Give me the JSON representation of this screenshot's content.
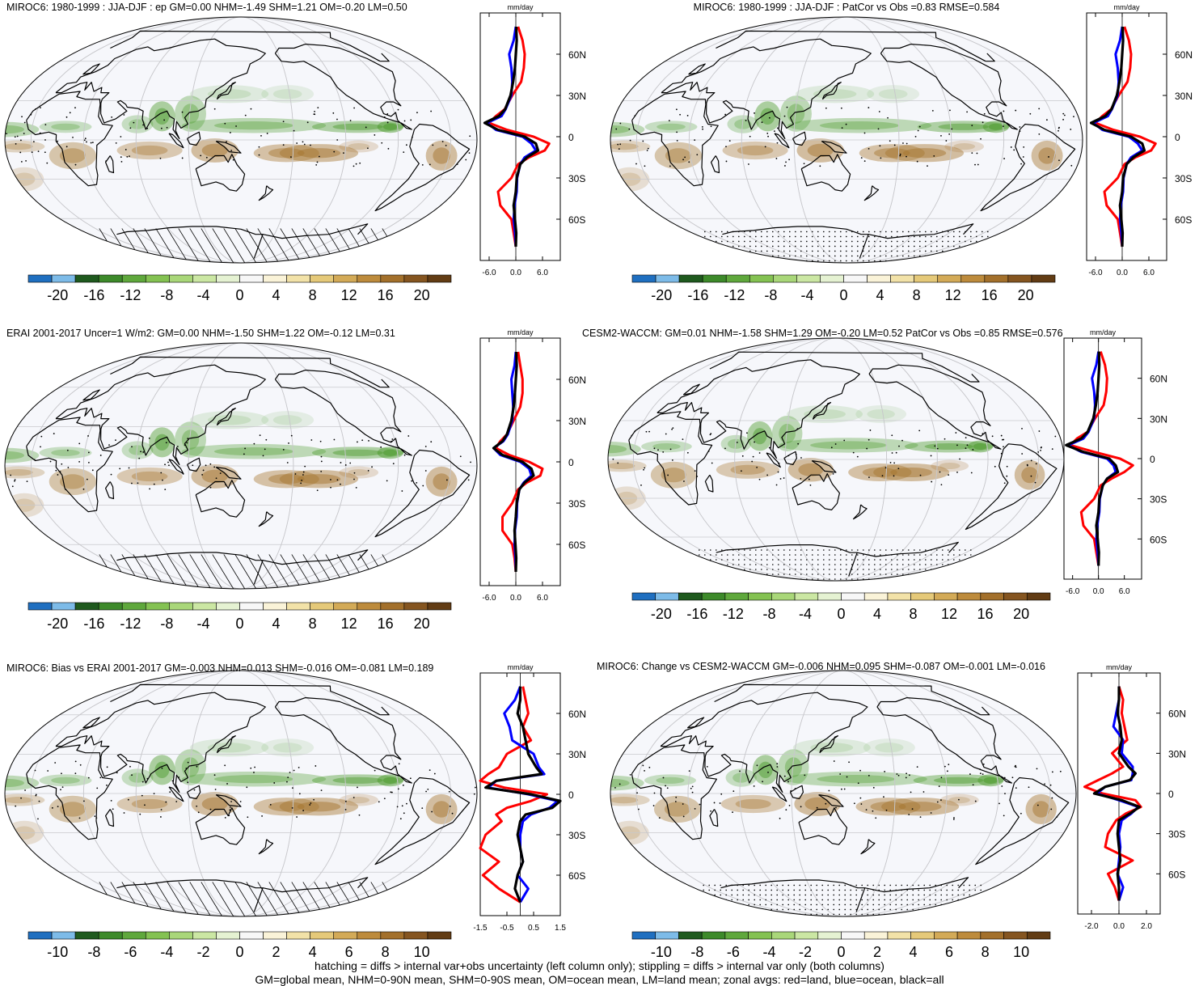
{
  "colors": {
    "land_line": "#ff0000",
    "ocean_line": "#0000ff",
    "all_line": "#000000",
    "wet": "#4a9a2a",
    "dry": "#a5742c",
    "palette": [
      "#1f6fc0",
      "#7dbbe8",
      "#1f5a1e",
      "#3d8a2a",
      "#5fa83c",
      "#84c252",
      "#a9d779",
      "#cbe7a3",
      "#e5f2d2",
      "#f7f7f7",
      "#faf3d8",
      "#f2e2a8",
      "#e5c979",
      "#d3aa57",
      "#bd8b3c",
      "#a3702b",
      "#855520",
      "#623c14"
    ]
  },
  "footer": {
    "line1": "hatching = diffs > internal var+obs uncertainty (left column only); stippling = diffs > internal var only (both columns)",
    "line2": "GM=global mean, NHM=0-90N mean, SHM=0-90S mean, OM=ocean mean, LM=land mean; zonal avgs: red=land, blue=ocean, black=all"
  },
  "chart_data": [
    {
      "type": "heatmap",
      "title": "MIROC6: 1980-1999 : JJA-DJF : ep GM=0.00 NHM=-1.49 SHM=1.21 OM=-0.20 LM=0.50",
      "colorbar_labels": [
        "-20",
        "-16",
        "-12",
        "-8",
        "-4",
        "0",
        "4",
        "8",
        "12",
        "16",
        "20"
      ],
      "profile": {
        "unit": "mm/day",
        "xticks": [
          "-6.0",
          "0.0",
          "6.0"
        ],
        "xlim": [
          -8,
          10
        ],
        "yticks": [
          "60N",
          "30N",
          "0",
          "30S",
          "60S"
        ],
        "lat": [
          80,
          70,
          60,
          50,
          40,
          30,
          20,
          15,
          10,
          5,
          0,
          -5,
          -10,
          -15,
          -20,
          -30,
          -40,
          -50,
          -60,
          -70,
          -80
        ],
        "all": [
          0.1,
          0.2,
          0.0,
          -0.2,
          -0.6,
          -1.2,
          -2.4,
          -3.8,
          -7.0,
          -4.0,
          2.0,
          4.5,
          5.0,
          2.5,
          1.0,
          0.2,
          0.0,
          -0.5,
          -0.2,
          0.1,
          0.0
        ],
        "land": [
          0.5,
          1.5,
          2.0,
          1.8,
          1.2,
          -0.8,
          -2.5,
          -4.5,
          -6.0,
          -2.0,
          4.0,
          7.5,
          6.5,
          3.0,
          0.5,
          -1.0,
          -4.0,
          -3.5,
          -1.0,
          -0.5,
          0.0
        ],
        "ocean": [
          0.0,
          -0.5,
          -1.5,
          -1.0,
          -0.8,
          -1.0,
          -2.3,
          -3.2,
          -6.5,
          -4.5,
          1.5,
          3.5,
          4.5,
          2.0,
          1.0,
          0.3,
          0.2,
          -0.3,
          -0.5,
          -0.2,
          0.0
        ]
      }
    },
    {
      "type": "heatmap",
      "title": "MIROC6: 1980-1999 : JJA-DJF : PatCor vs Obs =0.83 RMSE=0.584",
      "colorbar_labels": [
        "-20",
        "-16",
        "-12",
        "-8",
        "-4",
        "0",
        "4",
        "8",
        "12",
        "16",
        "20"
      ],
      "profile": {
        "unit": "mm/day",
        "xticks": [
          "-6.0",
          "0.0",
          "6.0"
        ],
        "xlim": [
          -8,
          10
        ],
        "yticks": [
          "60N",
          "30N",
          "0",
          "30S",
          "60S"
        ],
        "lat": [
          80,
          70,
          60,
          50,
          40,
          30,
          20,
          15,
          10,
          5,
          0,
          -5,
          -10,
          -15,
          -20,
          -30,
          -40,
          -50,
          -60,
          -70,
          -80
        ],
        "all": [
          0.1,
          0.2,
          0.0,
          -0.2,
          -0.6,
          -1.2,
          -2.4,
          -3.8,
          -7.0,
          -4.0,
          2.0,
          4.5,
          5.0,
          2.5,
          1.0,
          0.2,
          0.0,
          -0.5,
          -0.2,
          0.1,
          0.0
        ],
        "land": [
          0.5,
          1.5,
          2.0,
          1.8,
          1.2,
          -0.8,
          -2.5,
          -4.5,
          -6.0,
          -2.0,
          4.0,
          7.5,
          6.5,
          3.0,
          0.5,
          -1.0,
          -4.0,
          -3.5,
          -1.0,
          -0.5,
          0.0
        ],
        "ocean": [
          0.0,
          -0.5,
          -1.5,
          -1.0,
          -0.8,
          -1.0,
          -2.3,
          -3.2,
          -6.5,
          -4.5,
          1.5,
          3.5,
          4.5,
          2.0,
          1.0,
          0.3,
          0.2,
          -0.3,
          -0.5,
          -0.2,
          0.0
        ]
      }
    },
    {
      "type": "heatmap",
      "title": "ERAI 2001-2017 Uncer=1 W/m2: GM=0.00 NHM=-1.50 SHM=1.22 OM=-0.12 LM=0.31",
      "colorbar_labels": [
        "-20",
        "-16",
        "-12",
        "-8",
        "-4",
        "0",
        "4",
        "8",
        "12",
        "16",
        "20"
      ],
      "profile": {
        "unit": "mm/day",
        "xticks": [
          "-6.0",
          "0.0",
          "6.0"
        ],
        "xlim": [
          -8,
          10
        ],
        "yticks": [
          "60N",
          "30N",
          "0",
          "30S",
          "60S"
        ],
        "lat": [
          80,
          70,
          60,
          50,
          40,
          30,
          20,
          15,
          10,
          5,
          0,
          -5,
          -10,
          -15,
          -20,
          -30,
          -40,
          -50,
          -60,
          -70,
          -80
        ],
        "all": [
          0.1,
          0.2,
          0.0,
          -0.2,
          -0.5,
          -1.0,
          -2.0,
          -3.0,
          -5.0,
          -3.0,
          1.5,
          3.5,
          4.0,
          2.0,
          0.8,
          0.2,
          0.0,
          -0.3,
          -0.1,
          0.1,
          0.0
        ],
        "land": [
          0.5,
          1.0,
          1.5,
          1.5,
          1.0,
          -0.5,
          -2.0,
          -3.5,
          -4.5,
          -1.5,
          3.0,
          6.0,
          5.5,
          2.5,
          0.5,
          -0.8,
          -3.0,
          -3.0,
          -0.8,
          -0.3,
          0.0
        ],
        "ocean": [
          0.0,
          -0.3,
          -1.0,
          -0.8,
          -0.6,
          -0.8,
          -1.8,
          -2.8,
          -5.0,
          -3.5,
          1.0,
          3.0,
          3.5,
          1.8,
          0.8,
          0.3,
          0.2,
          -0.2,
          -0.3,
          -0.1,
          0.0
        ]
      }
    },
    {
      "type": "heatmap",
      "title": "CESM2-WACCM: GM=0.01 NHM=-1.58 SHM=1.29 OM=-0.20 LM=0.52 PatCor vs Obs =0.85 RMSE=0.576",
      "colorbar_labels": [
        "-20",
        "-16",
        "-12",
        "-8",
        "-4",
        "0",
        "4",
        "8",
        "12",
        "16",
        "20"
      ],
      "profile": {
        "unit": "mm/day",
        "xticks": [
          "-6.0",
          "0.0",
          "6.0"
        ],
        "xlim": [
          -8,
          10
        ],
        "yticks": [
          "60N",
          "30N",
          "0",
          "30S",
          "60S"
        ],
        "lat": [
          80,
          70,
          60,
          50,
          40,
          30,
          20,
          15,
          10,
          5,
          0,
          -5,
          -10,
          -15,
          -20,
          -30,
          -40,
          -50,
          -60,
          -70,
          -80
        ],
        "all": [
          0.1,
          0.2,
          0.0,
          -0.2,
          -0.6,
          -1.2,
          -2.5,
          -4.0,
          -7.5,
          -3.5,
          2.5,
          4.0,
          4.5,
          2.0,
          1.0,
          0.2,
          0.0,
          -0.5,
          -0.2,
          0.1,
          0.0
        ],
        "land": [
          0.5,
          1.5,
          2.0,
          1.8,
          1.2,
          -0.8,
          -2.5,
          -5.0,
          -6.5,
          -1.0,
          5.0,
          8.0,
          6.0,
          3.0,
          0.5,
          -1.0,
          -4.0,
          -3.5,
          -1.0,
          -0.5,
          0.0
        ],
        "ocean": [
          0.0,
          -0.5,
          -1.5,
          -1.0,
          -0.8,
          -1.0,
          -2.3,
          -3.5,
          -7.0,
          -4.0,
          2.0,
          3.5,
          4.0,
          2.0,
          1.0,
          0.3,
          0.2,
          -0.3,
          -0.5,
          -0.2,
          0.0
        ]
      }
    },
    {
      "type": "heatmap",
      "title": "MIROC6: Bias vs ERAI 2001-2017 GM=-0.003 NHM=0.013 SHM=-0.016 OM=-0.081 LM=0.189",
      "colorbar_labels": [
        "-10",
        "-8",
        "-6",
        "-4",
        "-2",
        "0",
        "2",
        "4",
        "6",
        "8",
        "10"
      ],
      "profile": {
        "unit": "mm/day",
        "xticks": [
          "-1.5",
          "-0.5",
          "0.5",
          "1.5"
        ],
        "xlim": [
          -1.5,
          1.5
        ],
        "yticks": [
          "60N",
          "30N",
          "0",
          "30S",
          "60S"
        ],
        "lat": [
          80,
          70,
          60,
          50,
          40,
          30,
          20,
          15,
          10,
          5,
          0,
          -5,
          -10,
          -15,
          -20,
          -30,
          -40,
          -50,
          -60,
          -70,
          -80
        ],
        "all": [
          0.0,
          0.0,
          -0.1,
          0.1,
          0.2,
          0.3,
          0.6,
          0.8,
          -0.9,
          -1.3,
          0.4,
          1.5,
          1.2,
          0.2,
          0.0,
          -0.1,
          0.0,
          0.1,
          -0.1,
          -0.2,
          0.0
        ],
        "land": [
          0.1,
          0.2,
          0.3,
          0.1,
          0.4,
          -0.5,
          -0.8,
          -1.2,
          -1.5,
          -0.6,
          1.0,
          0.4,
          -0.5,
          -0.9,
          -0.7,
          -1.3,
          -1.5,
          -0.8,
          -1.4,
          -0.8,
          0.0
        ],
        "ocean": [
          0.0,
          -0.2,
          -0.6,
          -0.4,
          -0.3,
          0.5,
          0.7,
          0.9,
          -0.9,
          -1.2,
          0.3,
          1.4,
          1.1,
          0.4,
          0.1,
          0.0,
          0.0,
          0.1,
          -0.1,
          0.3,
          0.0
        ]
      }
    },
    {
      "type": "heatmap",
      "title": "MIROC6: Change vs CESM2-WACCM GM=-0.006 NHM=0.095 SHM=-0.087 OM=-0.001 LM=-0.016",
      "colorbar_labels": [
        "-10",
        "-8",
        "-6",
        "-4",
        "-2",
        "0",
        "2",
        "4",
        "6",
        "8",
        "10"
      ],
      "profile": {
        "unit": "mm/day",
        "xticks": [
          "-2.0",
          "0.0",
          "2.0"
        ],
        "xlim": [
          -3,
          3
        ],
        "yticks": [
          "60N",
          "30N",
          "0",
          "30S",
          "60S"
        ],
        "lat": [
          80,
          70,
          60,
          50,
          40,
          30,
          20,
          15,
          10,
          5,
          0,
          -5,
          -10,
          -15,
          -20,
          -30,
          -40,
          -50,
          -60,
          -70,
          -80
        ],
        "all": [
          0.0,
          0.0,
          -0.1,
          0.1,
          0.2,
          0.0,
          0.7,
          1.2,
          0.8,
          -1.0,
          -1.8,
          0.2,
          1.5,
          0.8,
          0.0,
          -0.1,
          0.0,
          0.1,
          -0.1,
          0.0,
          0.0
        ],
        "land": [
          0.0,
          0.3,
          0.2,
          0.4,
          0.6,
          -0.5,
          0.3,
          -0.5,
          -1.5,
          -2.5,
          -1.2,
          1.2,
          1.6,
          0.5,
          -0.2,
          -0.8,
          -1.0,
          1.0,
          -0.8,
          -0.3,
          0.0
        ],
        "ocean": [
          0.0,
          0.0,
          -0.2,
          -0.4,
          0.3,
          0.2,
          1.0,
          1.0,
          0.9,
          -1.0,
          -1.6,
          0.0,
          1.4,
          0.9,
          0.2,
          0.0,
          0.1,
          0.0,
          -0.1,
          0.3,
          0.0
        ]
      }
    }
  ]
}
